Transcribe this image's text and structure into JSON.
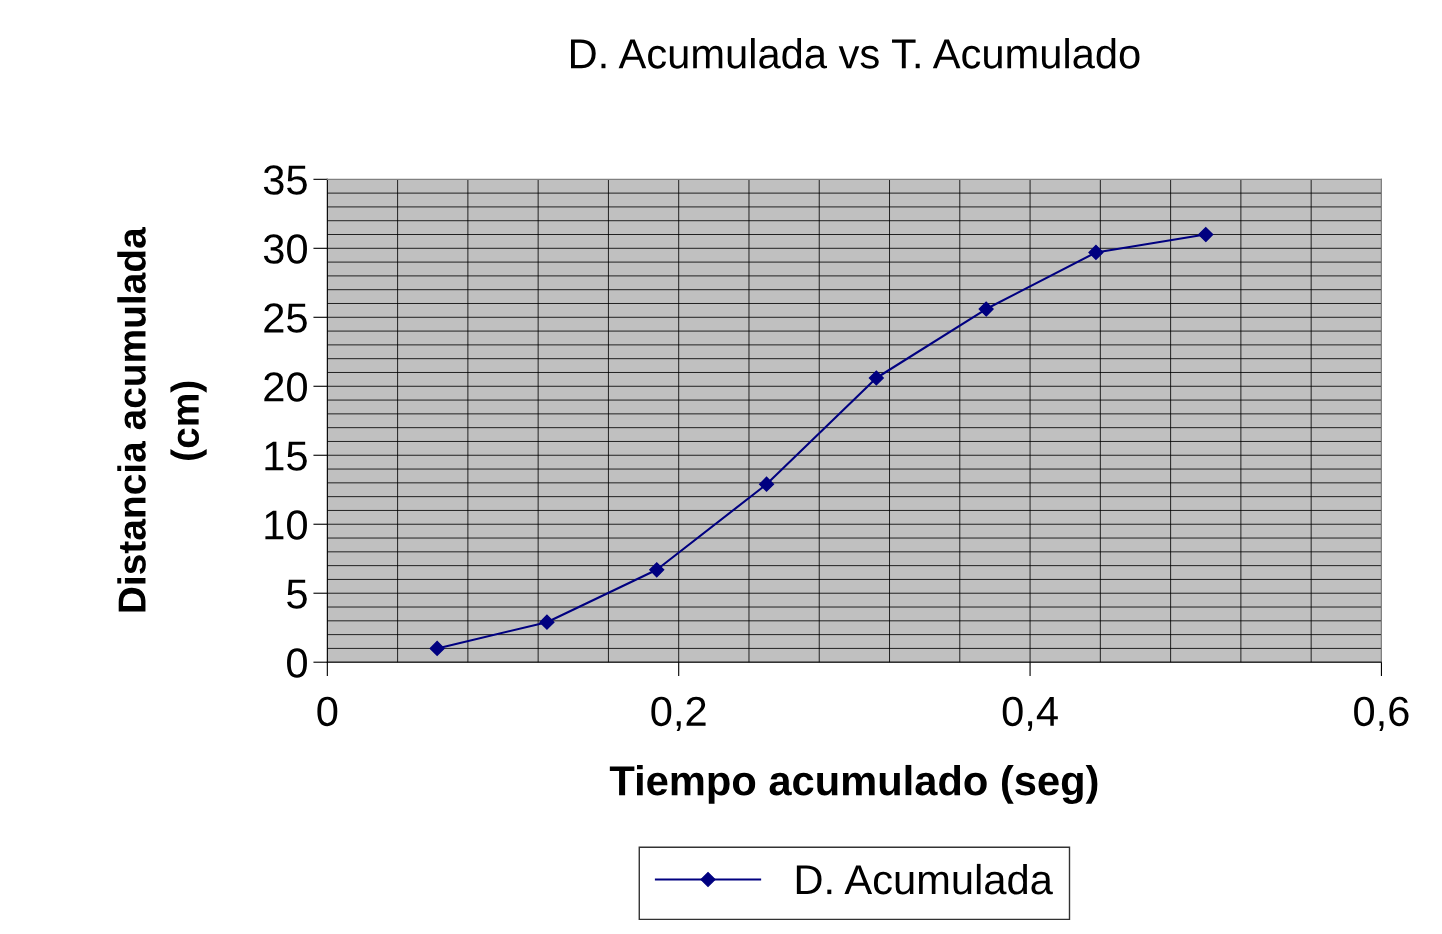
{
  "chart_data": {
    "type": "line",
    "title": "D. Acumulada vs T. Acumulado",
    "xlabel": "Tiempo acumulado (seg)",
    "ylabel": "Distancia acumulada\n(cm)",
    "series": [
      {
        "name": "D. Acumulada",
        "color": "#000080",
        "x": [
          0.0625,
          0.125,
          0.1875,
          0.25,
          0.3125,
          0.375,
          0.4375,
          0.5
        ],
        "values": [
          1.0,
          2.9,
          6.7,
          12.9,
          20.6,
          25.6,
          29.7,
          31.0
        ]
      }
    ],
    "xlim": [
      0,
      0.6
    ],
    "xticks": [
      0,
      {
        "value": 0.2,
        "label": "0,2"
      },
      {
        "value": 0.4,
        "label": "0,4"
      },
      {
        "value": 0.6,
        "label": "0,6"
      }
    ],
    "ylim": [
      0,
      35
    ],
    "yticks": [
      0,
      5,
      10,
      15,
      20,
      25,
      30,
      35
    ],
    "grid": true,
    "legend": "bottom",
    "marker": "diamond",
    "line_style": "solid"
  }
}
